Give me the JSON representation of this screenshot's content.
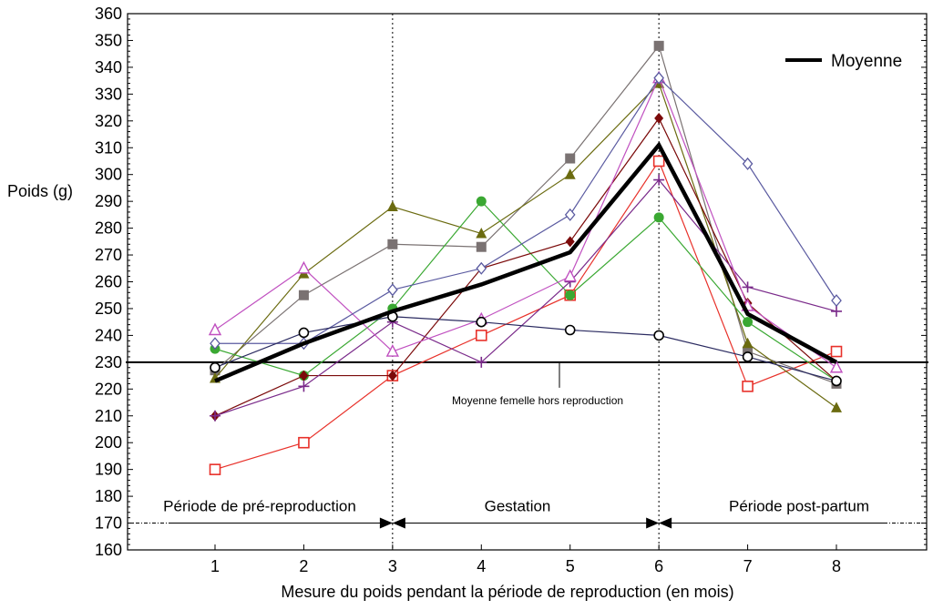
{
  "chart_data": {
    "type": "line",
    "xlabel": "Mesure du poids pendant la période de reproduction (en mois)",
    "ylabel": "Poids (g)",
    "x": [
      1,
      2,
      3,
      4,
      5,
      6,
      7,
      8
    ],
    "xticks": [
      "1",
      "2",
      "3",
      "4",
      "5",
      "6",
      "7",
      "8"
    ],
    "ylim": [
      160,
      360
    ],
    "yticks": [
      160,
      170,
      180,
      190,
      200,
      210,
      220,
      230,
      240,
      250,
      260,
      270,
      280,
      290,
      300,
      310,
      320,
      330,
      340,
      350,
      360
    ],
    "grid": false,
    "legend": {
      "position": "top-right",
      "entries": [
        "Moyenne"
      ]
    },
    "series": [
      {
        "marker": "open-square",
        "color": "#e8312a",
        "values": [
          190,
          200,
          225,
          240,
          255,
          305,
          221,
          234
        ]
      },
      {
        "marker": "filled-square",
        "color": "#7a7272",
        "values": [
          227,
          255,
          274,
          273,
          306,
          348,
          234,
          222
        ]
      },
      {
        "marker": "filled-triangle",
        "color": "#6b6b10",
        "values": [
          224,
          263,
          288,
          278,
          300,
          334,
          237,
          213
        ]
      },
      {
        "marker": "filled-circle",
        "color": "#3aa832",
        "values": [
          235,
          225,
          250,
          290,
          255,
          284,
          245,
          223
        ]
      },
      {
        "marker": "filled-diamond",
        "color": "#7b0a0a",
        "values": [
          210,
          225,
          225,
          265,
          275,
          321,
          252,
          223
        ]
      },
      {
        "marker": "plus",
        "color": "#7a2a8a",
        "values": [
          210,
          221,
          245,
          230,
          260,
          298,
          258,
          249
        ]
      },
      {
        "marker": "open-triangle",
        "color": "#c050c0",
        "values": [
          242,
          265,
          234,
          246,
          262,
          336,
          251,
          228
        ]
      },
      {
        "marker": "open-diamond",
        "color": "#5a5aa0",
        "values": [
          237,
          237,
          257,
          265,
          285,
          336,
          304,
          253
        ]
      },
      {
        "marker": "open-circle",
        "color": "#2a2a60",
        "values": [
          228,
          241,
          247,
          245,
          242,
          240,
          232,
          223
        ]
      },
      {
        "name": "Moyenne",
        "marker": "none",
        "color": "#000000",
        "values": [
          223,
          237,
          249,
          259,
          271,
          311,
          248,
          230
        ]
      }
    ],
    "reference_line": {
      "value": 230,
      "label": "Moyenne femelle hors reproduction"
    },
    "period_dividers": [
      3,
      6
    ],
    "periods": [
      {
        "label": "Période de pré-reproduction",
        "from": 0,
        "to": 3
      },
      {
        "label": "Gestation",
        "from": 3,
        "to": 6
      },
      {
        "label": "Période post-partum",
        "from": 6,
        "to": 9
      }
    ],
    "period_arrow_level": 170
  }
}
